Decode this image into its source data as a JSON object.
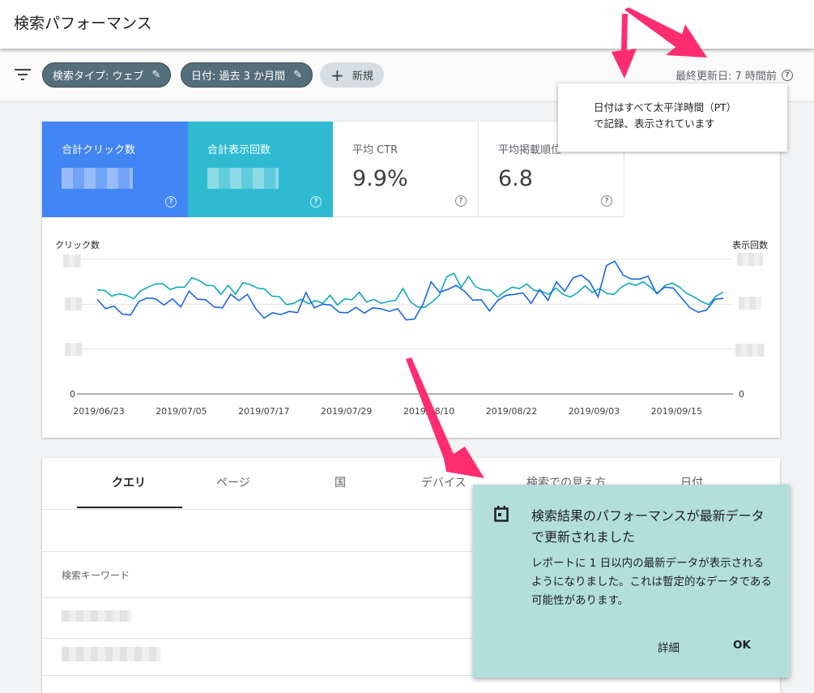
{
  "header": {
    "title": "検索パフォーマンス"
  },
  "toolbar": {
    "filter_icon": "filter-icon",
    "chips": [
      "検索タイプ: ウェブ",
      "日付: 過去 3 か月間"
    ],
    "new_label": "新規",
    "updated": "最終更新日: 7 時間前"
  },
  "tooltip": {
    "line1": "日付はすべて太平洋時間（PT）",
    "line2": "で記録、表示されています"
  },
  "metrics": [
    {
      "label": "合計クリック数",
      "value": "",
      "color": "#4285f4",
      "selected": true
    },
    {
      "label": "合計表示回数",
      "value": "",
      "color": "#2ebbd1",
      "selected": true
    },
    {
      "label": "平均 CTR",
      "value": "9.9%",
      "selected": false
    },
    {
      "label": "平均掲載順位",
      "value": "6.8",
      "selected": false
    }
  ],
  "chart_data": {
    "type": "line",
    "ylabel_left": "クリック数",
    "ylabel_right": "表示回数",
    "y_zero_label_left": "0",
    "y_zero_label_right": "0",
    "ylim": [
      0,
      3
    ],
    "x_ticks": [
      "2019/06/23",
      "2019/07/05",
      "2019/07/17",
      "2019/07/29",
      "2019/08/10",
      "2019/08/22",
      "2019/09/03",
      "2019/09/15"
    ],
    "grid": true,
    "series": [
      {
        "name": "クリック数",
        "color": "#1a66e8",
        "values": [
          2.11,
          1.9,
          1.96,
          1.78,
          1.76,
          2.06,
          2.14,
          2.12,
          1.98,
          2.12,
          1.94,
          2.29,
          2.11,
          2.1,
          1.94,
          1.92,
          2.22,
          2.08,
          2.22,
          1.9,
          1.69,
          1.81,
          1.77,
          1.84,
          1.81,
          2.26,
          1.92,
          2.0,
          1.98,
          1.82,
          1.81,
          1.93,
          1.8,
          1.92,
          1.9,
          1.84,
          1.9,
          1.65,
          1.67,
          1.99,
          2.5,
          2.27,
          2.33,
          2.42,
          2.29,
          2.09,
          2.1,
          1.85,
          2.09,
          2.2,
          2.22,
          2.25,
          2.02,
          2.33,
          2.09,
          2.5,
          2.29,
          2.59,
          2.65,
          2.5,
          2.16,
          2.86,
          2.96,
          2.65,
          2.56,
          2.56,
          2.62,
          2.24,
          2.38,
          2.36,
          2.14,
          1.92,
          1.82,
          1.87,
          2.11,
          2.13
        ]
      },
      {
        "name": "表示回数",
        "color": "#12a9ba",
        "values": [
          2.32,
          2.31,
          2.18,
          2.23,
          2.2,
          2.12,
          2.3,
          2.38,
          2.45,
          2.46,
          2.33,
          2.38,
          2.38,
          2.59,
          2.53,
          2.42,
          2.41,
          2.22,
          2.42,
          2.22,
          2.48,
          2.44,
          2.36,
          2.34,
          2.18,
          2.17,
          1.99,
          2.02,
          2.11,
          2.01,
          2.08,
          2.02,
          2.2,
          1.98,
          2.12,
          2.1,
          2.27,
          2.05,
          2.11,
          2.02,
          2.06,
          2.09,
          2.35,
          2.06,
          1.94,
          1.93,
          2.05,
          2.2,
          2.61,
          2.69,
          2.38,
          2.62,
          2.39,
          2.32,
          2.31,
          2.16,
          2.28,
          2.38,
          2.35,
          2.45,
          2.31,
          2.29,
          2.22,
          2.36,
          2.22,
          2.16,
          2.26,
          2.41,
          2.26,
          2.35,
          2.24,
          2.22,
          2.38,
          2.47,
          2.42,
          2.5,
          2.38,
          2.24,
          2.42,
          2.47,
          2.38,
          2.24,
          2.16,
          2.06,
          1.99,
          2.18,
          2.27
        ]
      }
    ]
  },
  "table": {
    "tabs": [
      "クエリ",
      "ページ",
      "国",
      "デバイス",
      "検索での見え方",
      "日付"
    ],
    "active_tab": 0,
    "column_header": "検索キーワード"
  },
  "snackbar": {
    "icon": "calendar-icon",
    "title": "検索結果のパフォーマンスが最新データで更新されました",
    "body": "レポートに 1 日以内の最新データが表示されるようになりました。これは暫定的なデータである可能性があります。",
    "details": "詳細",
    "ok": "OK"
  },
  "annotation_color": "#ff2d6f"
}
